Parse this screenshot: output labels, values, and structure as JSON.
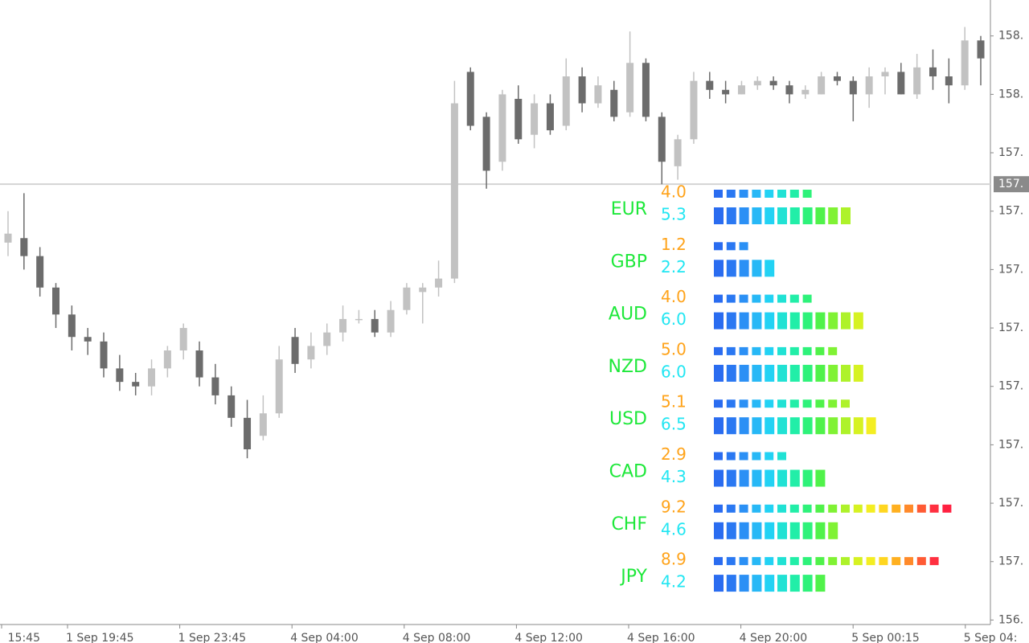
{
  "chart_data": {
    "type": "candlestick",
    "candles": [
      [
        157.71,
        157.78,
        157.68,
        157.73
      ],
      [
        157.72,
        157.82,
        157.65,
        157.68
      ],
      [
        157.68,
        157.7,
        157.59,
        157.61
      ],
      [
        157.61,
        157.62,
        157.52,
        157.55
      ],
      [
        157.55,
        157.57,
        157.47,
        157.5
      ],
      [
        157.5,
        157.52,
        157.46,
        157.49
      ],
      [
        157.49,
        157.51,
        157.41,
        157.43
      ],
      [
        157.43,
        157.46,
        157.38,
        157.4
      ],
      [
        157.4,
        157.42,
        157.37,
        157.39
      ],
      [
        157.39,
        157.45,
        157.37,
        157.43
      ],
      [
        157.43,
        157.48,
        157.41,
        157.47
      ],
      [
        157.47,
        157.53,
        157.45,
        157.52
      ],
      [
        157.47,
        157.49,
        157.39,
        157.41
      ],
      [
        157.41,
        157.44,
        157.35,
        157.37
      ],
      [
        157.37,
        157.39,
        157.3,
        157.32
      ],
      [
        157.32,
        157.36,
        157.23,
        157.25
      ],
      [
        157.28,
        157.37,
        157.27,
        157.33
      ],
      [
        157.33,
        157.48,
        157.32,
        157.45
      ],
      [
        157.5,
        157.52,
        157.42,
        157.44
      ],
      [
        157.45,
        157.51,
        157.43,
        157.48
      ],
      [
        157.48,
        157.53,
        157.46,
        157.51
      ],
      [
        157.51,
        157.57,
        157.49,
        157.54
      ],
      [
        157.54,
        157.56,
        157.53,
        157.54
      ],
      [
        157.54,
        157.56,
        157.5,
        157.51
      ],
      [
        157.51,
        157.58,
        157.5,
        157.56
      ],
      [
        157.56,
        157.62,
        157.55,
        157.61
      ],
      [
        157.6,
        157.62,
        157.53,
        157.61
      ],
      [
        157.61,
        157.67,
        157.59,
        157.63
      ],
      [
        157.63,
        158.07,
        157.62,
        158.02
      ],
      [
        158.09,
        158.1,
        157.96,
        157.97
      ],
      [
        157.99,
        158.0,
        157.83,
        157.87
      ],
      [
        157.89,
        158.05,
        157.87,
        158.04
      ],
      [
        158.03,
        158.06,
        157.93,
        157.94
      ],
      [
        157.95,
        158.04,
        157.92,
        158.02
      ],
      [
        158.02,
        158.04,
        157.95,
        157.96
      ],
      [
        157.97,
        158.12,
        157.96,
        158.08
      ],
      [
        158.08,
        158.1,
        158.0,
        158.02
      ],
      [
        158.02,
        158.08,
        158.01,
        158.06
      ],
      [
        158.05,
        158.07,
        157.98,
        157.99
      ],
      [
        158.0,
        158.18,
        157.99,
        158.11
      ],
      [
        158.11,
        158.12,
        157.98,
        157.99
      ],
      [
        157.99,
        158.0,
        157.84,
        157.89
      ],
      [
        157.88,
        157.95,
        157.85,
        157.94
      ],
      [
        157.94,
        158.09,
        157.93,
        158.07
      ],
      [
        158.07,
        158.09,
        158.03,
        158.05
      ],
      [
        158.05,
        158.07,
        158.02,
        158.04
      ],
      [
        158.04,
        158.07,
        158.04,
        158.06
      ],
      [
        158.06,
        158.08,
        158.05,
        158.07
      ],
      [
        158.07,
        158.08,
        158.05,
        158.06
      ],
      [
        158.06,
        158.07,
        158.02,
        158.04
      ],
      [
        158.04,
        158.06,
        158.03,
        158.05
      ],
      [
        158.04,
        158.09,
        158.04,
        158.08
      ],
      [
        158.08,
        158.09,
        158.06,
        158.07
      ],
      [
        158.07,
        158.08,
        157.98,
        158.04
      ],
      [
        158.04,
        158.1,
        158.01,
        158.08
      ],
      [
        158.08,
        158.1,
        158.04,
        158.09
      ],
      [
        158.09,
        158.11,
        158.04,
        158.04
      ],
      [
        158.04,
        158.13,
        158.03,
        158.1
      ],
      [
        158.1,
        158.14,
        158.05,
        158.08
      ],
      [
        158.08,
        158.12,
        158.02,
        158.06
      ],
      [
        158.06,
        158.19,
        158.05,
        158.16
      ],
      [
        158.16,
        158.17,
        158.06,
        158.12
      ]
    ],
    "ylim": [
      156.86,
      158.25
    ],
    "yticks": [
      {
        "value": 158.17,
        "label": "158."
      },
      {
        "value": 158.04,
        "label": "158."
      },
      {
        "value": 157.91,
        "label": "157."
      },
      {
        "value": 157.78,
        "label": "157."
      },
      {
        "value": 157.65,
        "label": "157."
      },
      {
        "value": 157.52,
        "label": "157."
      },
      {
        "value": 157.39,
        "label": "157."
      },
      {
        "value": 157.26,
        "label": "157."
      },
      {
        "value": 157.13,
        "label": "157."
      },
      {
        "value": 157.0,
        "label": "157."
      },
      {
        "value": 156.87,
        "label": "156."
      }
    ],
    "current_price": {
      "value": 157.84,
      "label": "157."
    },
    "xticks": [
      "15:45",
      "1 Sep 19:45",
      "1 Sep 23:45",
      "4 Sep 04:00",
      "4 Sep 08:00",
      "4 Sep 12:00",
      "4 Sep 16:00",
      "4 Sep 20:00",
      "5 Sep 00:15",
      "5 Sep 04:"
    ]
  },
  "indicator": {
    "rows": [
      {
        "currency": "EUR",
        "values": [
          4.0,
          5.3
        ],
        "value_labels": [
          "4.0",
          "5.3"
        ]
      },
      {
        "currency": "GBP",
        "values": [
          1.2,
          2.2
        ],
        "value_labels": [
          "1.2",
          "2.2"
        ]
      },
      {
        "currency": "AUD",
        "values": [
          4.0,
          6.0
        ],
        "value_labels": [
          "4.0",
          "6.0"
        ]
      },
      {
        "currency": "NZD",
        "values": [
          5.0,
          6.0
        ],
        "value_labels": [
          "5.0",
          "6.0"
        ]
      },
      {
        "currency": "USD",
        "values": [
          5.1,
          6.5
        ],
        "value_labels": [
          "5.1",
          "6.5"
        ]
      },
      {
        "currency": "CAD",
        "values": [
          2.9,
          4.3
        ],
        "value_labels": [
          "2.9",
          "4.3"
        ]
      },
      {
        "currency": "CHF",
        "values": [
          9.2,
          4.6
        ],
        "value_labels": [
          "9.2",
          "4.6"
        ]
      },
      {
        "currency": "JPY",
        "values": [
          8.9,
          4.2
        ],
        "value_labels": [
          "8.9",
          "4.2"
        ]
      }
    ]
  }
}
